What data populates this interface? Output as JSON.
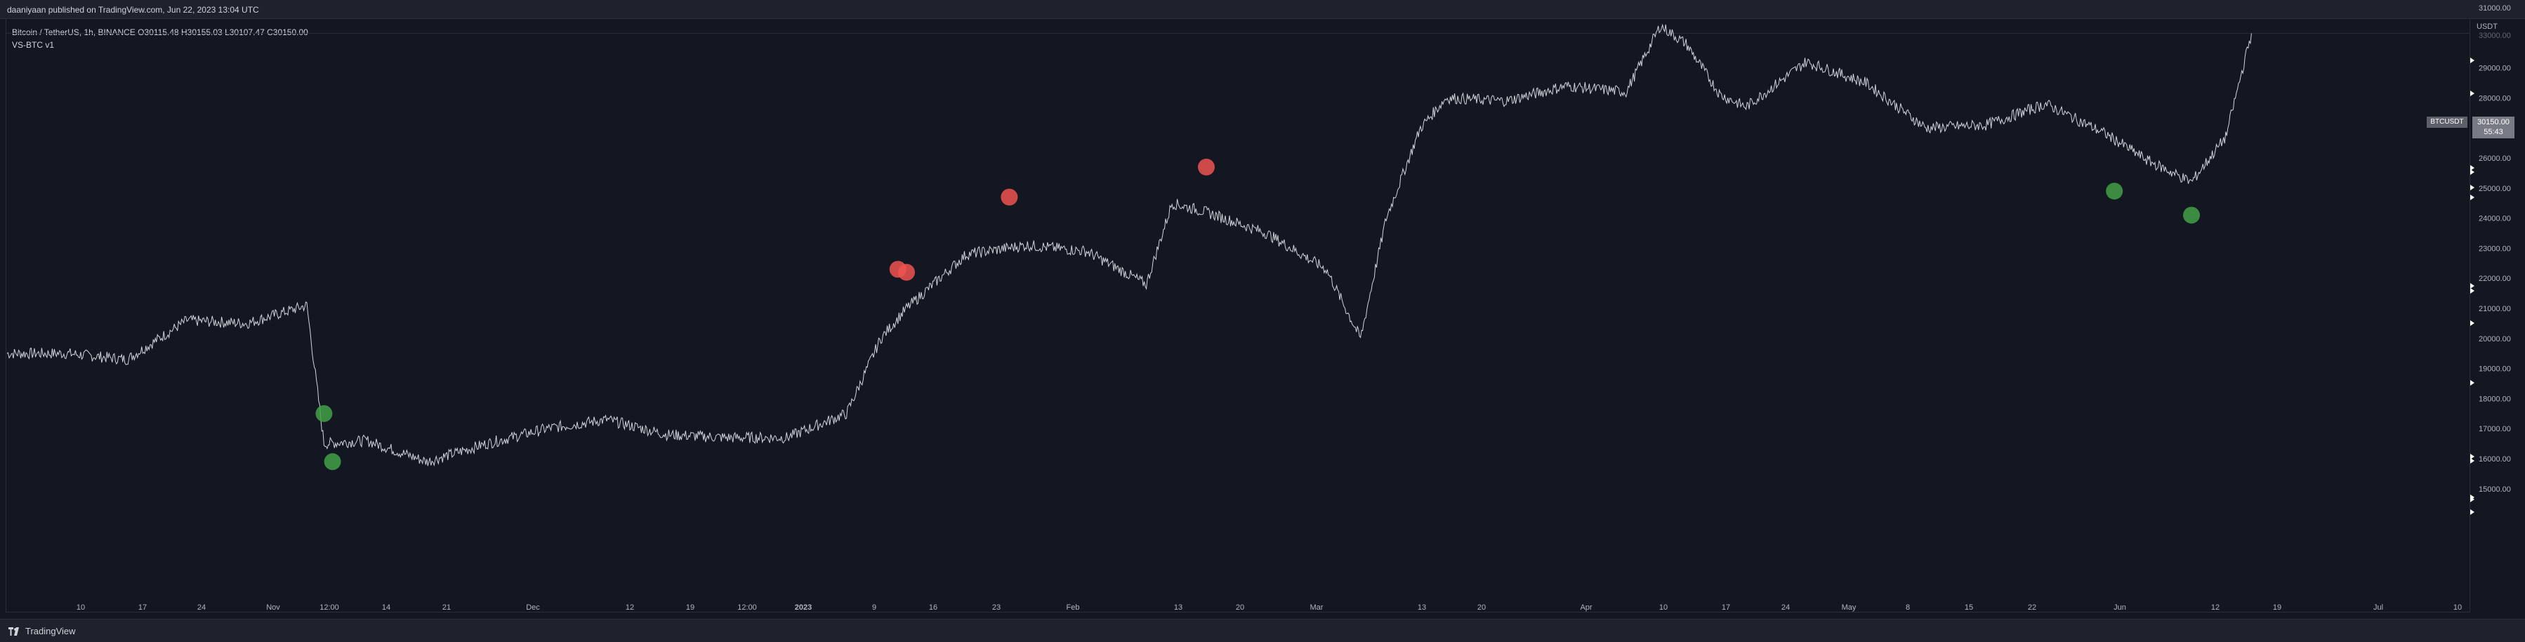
{
  "header": {
    "publish_text": "daaniyaan published on TradingView.com, Jun 22, 2023 13:04 UTC"
  },
  "legend": {
    "symbol_line": "Bitcoin / TetherUS, 1h, BINANCE  O30115.48  H30155.03  L30107.47  C30150.00",
    "indicator": "VS-BTC v1"
  },
  "price_axis": {
    "currency": "USDT",
    "top_partial": "33000.00",
    "labels": [
      "32000.00",
      "31000.00",
      "29000.00",
      "28000.00",
      "27000.00",
      "26000.00",
      "25000.00",
      "24000.00",
      "23000.00",
      "22000.00",
      "21000.00",
      "20000.00",
      "19000.00",
      "18000.00",
      "17000.00",
      "16000.00",
      "15000.00"
    ]
  },
  "current_price": {
    "symbol": "BTCUSDT",
    "price": "30150.00",
    "countdown": "55:43"
  },
  "time_axis": {
    "labels": [
      "10",
      "17",
      "24",
      "Nov",
      "12:00",
      "14",
      "21",
      "Dec",
      "12",
      "19",
      "12:00",
      "2023",
      "9",
      "16",
      "23",
      "Feb",
      "13",
      "20",
      "Mar",
      "13",
      "20",
      "Apr",
      "10",
      "17",
      "24",
      "May",
      "8",
      "15",
      "22",
      "Jun",
      "12",
      "19",
      "Jul",
      "10"
    ]
  },
  "chart_data": {
    "type": "line",
    "series": [
      {
        "x": [
          "Oct 3",
          "Oct 10",
          "Oct 17",
          "Oct 24",
          "Oct 31",
          "Nov 7",
          "Nov 9",
          "Nov 14",
          "Nov 21",
          "Nov 28",
          "Dec 5",
          "Dec 12",
          "Dec 19",
          "Dec 26",
          "Jan 2",
          "Jan 9",
          "Jan 13",
          "Jan 16",
          "Jan 23",
          "Jan 30",
          "Feb 6",
          "Feb 13",
          "Feb 16",
          "Feb 20",
          "Feb 27",
          "Mar 6",
          "Mar 10",
          "Mar 13",
          "Mar 17",
          "Mar 20",
          "Mar 27",
          "Apr 3",
          "Apr 10",
          "Apr 14",
          "Apr 17",
          "Apr 21",
          "Apr 24",
          "May 1",
          "May 8",
          "May 15",
          "May 22",
          "May 29",
          "Jun 5",
          "Jun 10",
          "Jun 15",
          "Jun 19",
          "Jun 22"
        ],
        "values": [
          19500,
          19500,
          19300,
          20600,
          20500,
          21100,
          16500,
          16600,
          15900,
          16500,
          17000,
          17300,
          16800,
          16700,
          16700,
          17500,
          20000,
          21000,
          22800,
          23100,
          22900,
          21800,
          24500,
          24200,
          23500,
          22300,
          20000,
          24000,
          27000,
          28000,
          27900,
          28400,
          28200,
          30400,
          29800,
          28100,
          27700,
          29200,
          28500,
          27000,
          27100,
          27800,
          26800,
          25900,
          25200,
          26700,
          30150
        ]
      }
    ],
    "ylim": [
      14500,
      33500
    ],
    "signals": {
      "sell": [
        {
          "x": "Jan 15",
          "y": 22300
        },
        {
          "x": "Jan 16",
          "y": 22200
        },
        {
          "x": "Jan 28",
          "y": 24700
        },
        {
          "x": "Feb 20",
          "y": 25700
        }
      ],
      "buy": [
        {
          "x": "Nov 9",
          "y": 17500
        },
        {
          "x": "Nov 10",
          "y": 15900
        },
        {
          "x": "Jun 6",
          "y": 24900
        },
        {
          "x": "Jun 15",
          "y": 24100
        }
      ]
    },
    "colors": {
      "line": "#d1d4dc",
      "sell": "#f05350",
      "buy": "#43a047",
      "background": "#131722"
    }
  }
}
